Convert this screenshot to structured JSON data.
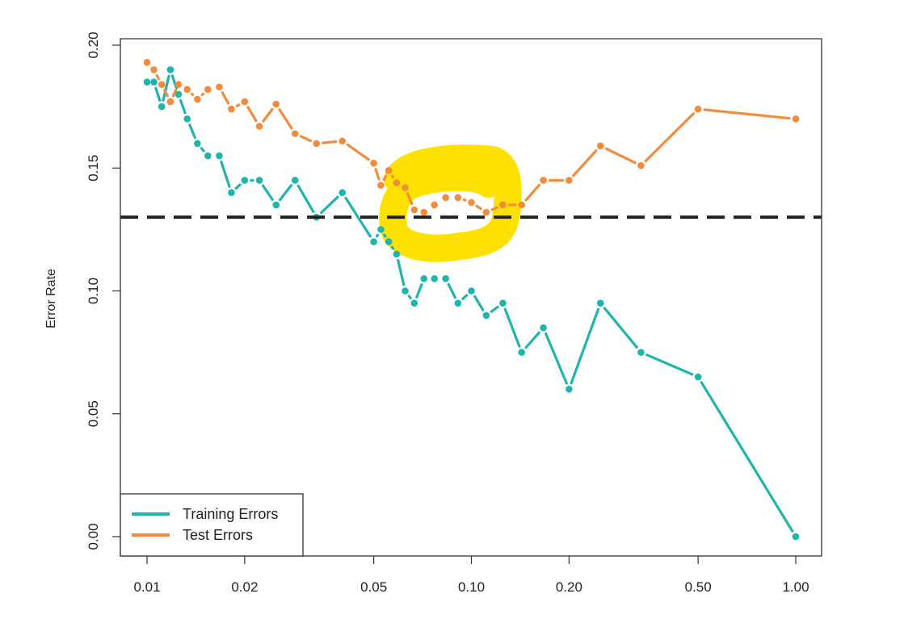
{
  "chart_data": {
    "type": "line",
    "title": "",
    "xlabel": "",
    "ylabel": "Error Rate",
    "x_scale": "log",
    "xlim": [
      0.01,
      1.0
    ],
    "ylim": [
      0.0,
      0.2
    ],
    "x_ticks": [
      "0.01",
      "0.02",
      "0.05",
      "0.10",
      "0.20",
      "0.50",
      "1.00"
    ],
    "x_tick_values": [
      0.01,
      0.02,
      0.05,
      0.1,
      0.2,
      0.5,
      1.0
    ],
    "y_ticks": [
      "0.00",
      "0.05",
      "0.10",
      "0.15",
      "0.20"
    ],
    "y_tick_values": [
      0,
      0.05,
      0.1,
      0.15,
      0.2
    ],
    "grid": false,
    "legend_position": "bottom-left",
    "x": [
      0.01,
      0.0105,
      0.0111,
      0.0118,
      0.0125,
      0.0133,
      0.0143,
      0.0154,
      0.0167,
      0.0182,
      0.02,
      0.0222,
      0.025,
      0.0286,
      0.0333,
      0.04,
      0.05,
      0.0526,
      0.0556,
      0.0588,
      0.0625,
      0.0667,
      0.0714,
      0.0769,
      0.0833,
      0.0909,
      0.1,
      0.1111,
      0.125,
      0.1429,
      0.1667,
      0.2,
      0.25,
      0.3333,
      0.5,
      1.0
    ],
    "series": [
      {
        "name": "Training Errors",
        "color": "#1fb5ad",
        "values": [
          0.185,
          0.185,
          0.175,
          0.19,
          0.18,
          0.17,
          0.16,
          0.155,
          0.155,
          0.14,
          0.145,
          0.145,
          0.135,
          0.145,
          0.13,
          0.14,
          0.12,
          0.125,
          0.12,
          0.115,
          0.1,
          0.095,
          0.105,
          0.105,
          0.105,
          0.095,
          0.1,
          0.09,
          0.095,
          0.075,
          0.085,
          0.06,
          0.095,
          0.075,
          0.065,
          0.0
        ]
      },
      {
        "name": "Test Errors",
        "color": "#f28c3c",
        "values": [
          0.193,
          0.19,
          0.184,
          0.177,
          0.184,
          0.182,
          0.178,
          0.182,
          0.183,
          0.174,
          0.177,
          0.167,
          0.176,
          0.164,
          0.16,
          0.161,
          0.152,
          0.143,
          0.149,
          0.144,
          0.142,
          0.133,
          0.132,
          0.135,
          0.138,
          0.138,
          0.136,
          0.132,
          0.135,
          0.135,
          0.145,
          0.145,
          0.159,
          0.151,
          0.174,
          0.17
        ]
      }
    ],
    "reference_line": {
      "y": 0.13,
      "style": "dashed",
      "color": "#222222"
    },
    "annotation": {
      "type": "highlighter-circle",
      "color": "#ffe100"
    }
  }
}
